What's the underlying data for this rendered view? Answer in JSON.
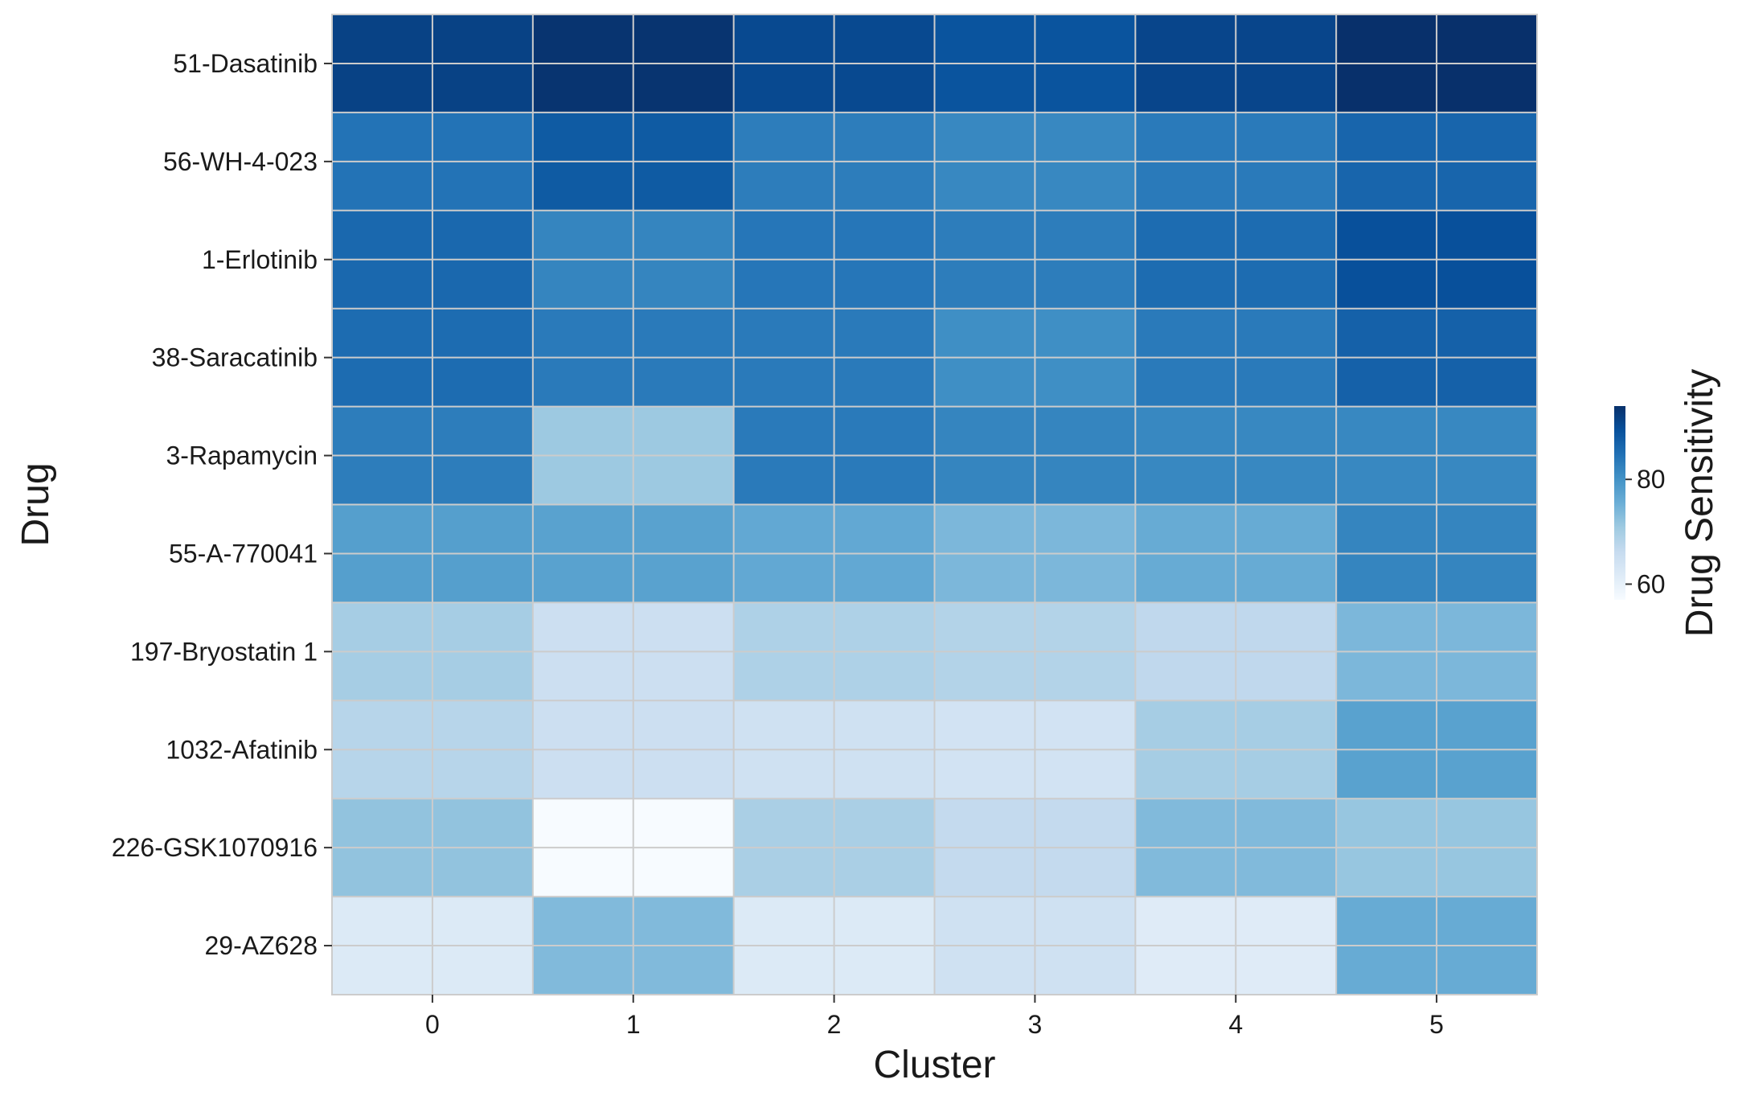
{
  "chart_data": {
    "type": "heatmap",
    "title": "",
    "xlabel": "Cluster",
    "ylabel": "Drug",
    "x_categories": [
      "0",
      "1",
      "2",
      "3",
      "4",
      "5"
    ],
    "y_categories": [
      "51-Dasatinib",
      "56-WH-4-023",
      "1-Erlotinib",
      "38-Saracatinib",
      "3-Rapamycin",
      "55-A-770041",
      "197-Bryostatin 1",
      "1032-Afatinib",
      "226-GSK1070916",
      "29-AZ628"
    ],
    "values": [
      [
        91.5,
        93.5,
        90.5,
        89.0,
        91.0,
        94.0
      ],
      [
        84.5,
        88.0,
        83.0,
        81.5,
        83.5,
        86.5
      ],
      [
        86.0,
        82.0,
        84.0,
        83.0,
        85.5,
        89.5
      ],
      [
        85.5,
        83.5,
        83.5,
        80.5,
        83.5,
        87.0
      ],
      [
        83.0,
        71.0,
        83.5,
        82.0,
        81.5,
        81.5
      ],
      [
        78.0,
        77.5,
        76.5,
        74.0,
        76.0,
        82.0
      ],
      [
        70.0,
        65.0,
        69.0,
        68.5,
        67.0,
        74.0
      ],
      [
        68.0,
        65.0,
        64.5,
        64.0,
        70.0,
        77.5
      ],
      [
        72.0,
        57.0,
        69.5,
        66.5,
        73.5,
        71.5
      ],
      [
        62.0,
        73.5,
        62.0,
        64.5,
        61.5,
        76.0
      ]
    ],
    "colorbar": {
      "label": "Drug Sensitivity",
      "ticks": [
        60,
        80
      ],
      "tick_labels": [
        "60",
        "80"
      ],
      "vmin": 57.0,
      "vmax": 94.0,
      "colormap": "Blues"
    },
    "grid": "light gray lines dividing each cell into quarters",
    "colors": {
      "cell_border": "#cccccc",
      "colormap_low": "#f7fbff",
      "colormap_high": "#08306b"
    }
  }
}
